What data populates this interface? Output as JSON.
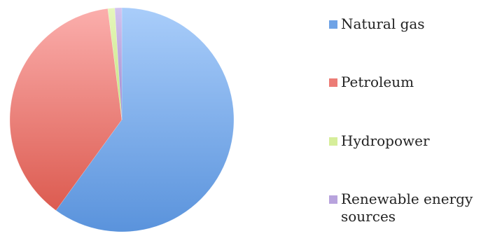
{
  "chart_data": {
    "type": "pie",
    "categories": [
      "Natural gas",
      "Petroleum",
      "Hydropower",
      "Renewable energy sources"
    ],
    "values": [
      60,
      38,
      1,
      1
    ],
    "colors": [
      "#6fa3e6",
      "#ec7c76",
      "#d6ee9a",
      "#b8a3dd"
    ],
    "title": "",
    "legend": "right"
  }
}
